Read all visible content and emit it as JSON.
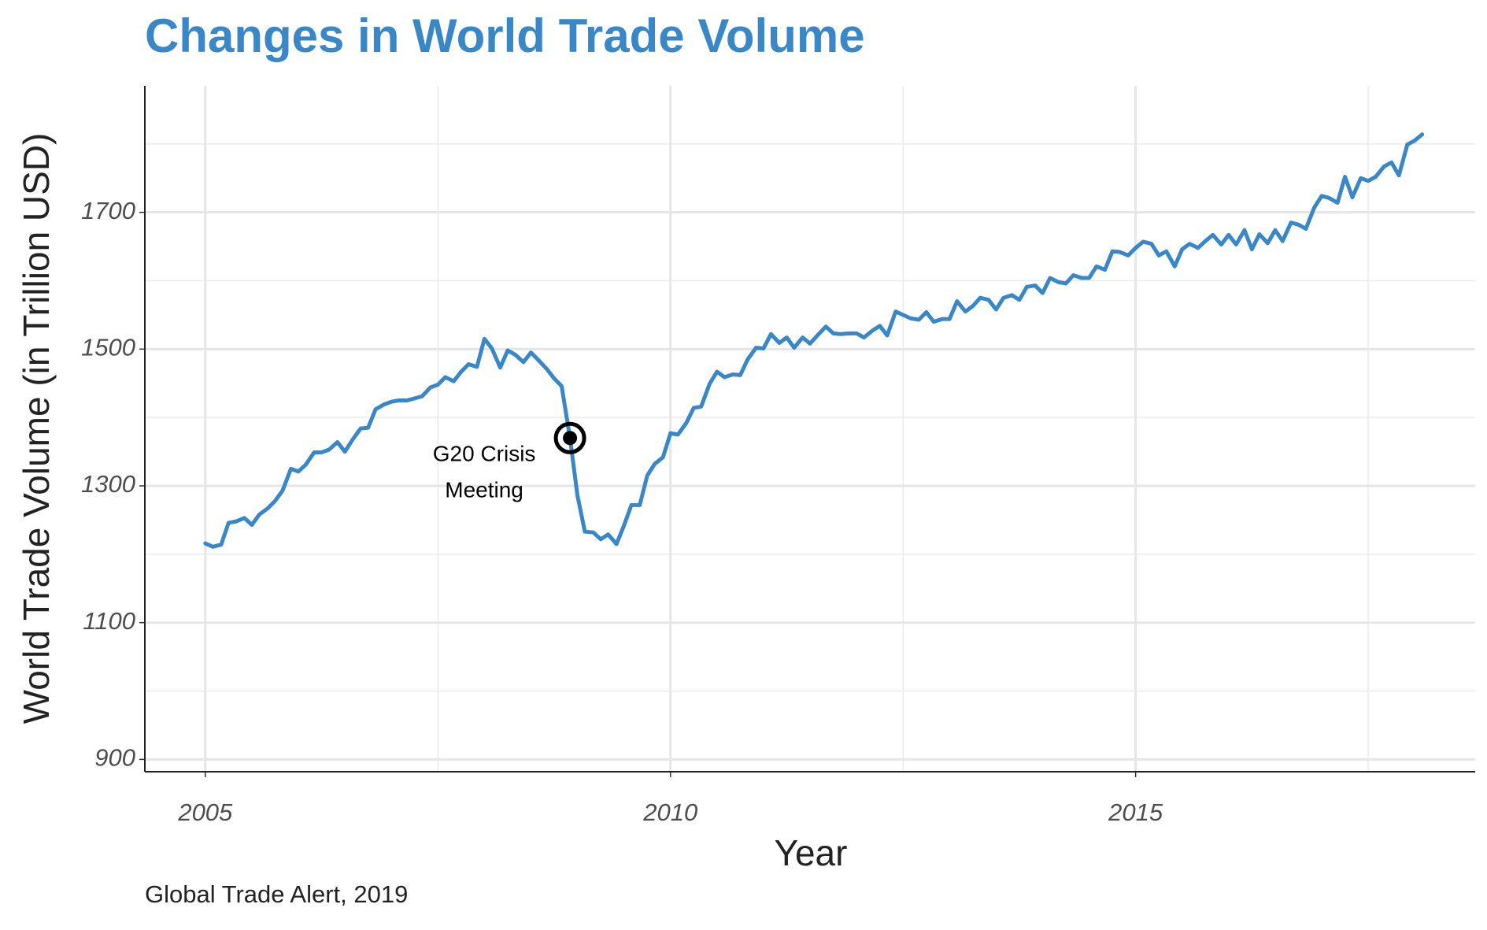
{
  "chart_data": {
    "type": "line",
    "title": "Changes in World Trade Volume",
    "x_label": "Year",
    "y_label": "World Trade Volume (in Trillion USD)",
    "caption": "Global Trade Alert, 2019",
    "x": [
      2005,
      2005.08,
      2005.17,
      2005.25,
      2005.33,
      2005.42,
      2005.5,
      2005.58,
      2005.67,
      2005.75,
      2005.83,
      2005.92,
      2006,
      2006.08,
      2006.17,
      2006.25,
      2006.33,
      2006.42,
      2006.5,
      2006.58,
      2006.67,
      2006.75,
      2006.83,
      2006.92,
      2007,
      2007.08,
      2007.17,
      2007.25,
      2007.33,
      2007.42,
      2007.5,
      2007.58,
      2007.67,
      2007.75,
      2007.83,
      2007.92,
      2008,
      2008.08,
      2008.17,
      2008.25,
      2008.33,
      2008.42,
      2008.5,
      2008.58,
      2008.67,
      2008.75,
      2008.83,
      2008.92,
      2009,
      2009.08,
      2009.17,
      2009.25,
      2009.33,
      2009.42,
      2009.5,
      2009.58,
      2009.67,
      2009.75,
      2009.83,
      2009.92,
      2010,
      2010.08,
      2010.17,
      2010.25,
      2010.33,
      2010.42,
      2010.5,
      2010.58,
      2010.67,
      2010.75,
      2010.83,
      2010.92,
      2011,
      2011.08,
      2011.17,
      2011.25,
      2011.33,
      2011.42,
      2011.5,
      2011.58,
      2011.67,
      2011.75,
      2011.83,
      2011.92,
      2012,
      2012.08,
      2012.17,
      2012.25,
      2012.33,
      2012.42,
      2012.5,
      2012.58,
      2012.67,
      2012.75,
      2012.83,
      2012.92,
      2013,
      2013.08,
      2013.17,
      2013.25,
      2013.33,
      2013.42,
      2013.5,
      2013.58,
      2013.67,
      2013.75,
      2013.83,
      2013.92,
      2014,
      2014.08,
      2014.17,
      2014.25,
      2014.33,
      2014.42,
      2014.5,
      2014.58,
      2014.67,
      2014.75,
      2014.83,
      2014.92,
      2015,
      2015.08,
      2015.17,
      2015.25,
      2015.33,
      2015.42,
      2015.5,
      2015.58,
      2015.67,
      2015.75,
      2015.83,
      2015.92,
      2016,
      2016.08,
      2016.17,
      2016.25,
      2016.33,
      2016.42,
      2016.5,
      2016.58,
      2016.67,
      2016.75,
      2016.83,
      2016.92,
      2017,
      2017.08,
      2017.17,
      2017.25,
      2017.33,
      2017.42,
      2017.5,
      2017.58,
      2017.67,
      2017.75,
      2017.83,
      2017.92,
      2018,
      2018.08
    ],
    "series": [
      {
        "color": "#3a87c8",
        "values": [
          1216,
          1211,
          1214,
          1246,
          1248,
          1253,
          1243,
          1258,
          1267,
          1278,
          1293,
          1325,
          1321,
          1331,
          1349,
          1349,
          1353,
          1364,
          1350,
          1367,
          1384,
          1385,
          1412,
          1419,
          1423,
          1425,
          1425,
          1428,
          1431,
          1444,
          1448,
          1459,
          1453,
          1467,
          1478,
          1474,
          1515,
          1501,
          1473,
          1498,
          1492,
          1481,
          1495,
          1484,
          1471,
          1457,
          1446,
          1370,
          1286,
          1233,
          1232,
          1222,
          1229,
          1215,
          1242,
          1272,
          1272,
          1315,
          1332,
          1342,
          1377,
          1375,
          1392,
          1414,
          1416,
          1449,
          1467,
          1459,
          1463,
          1462,
          1485,
          1502,
          1501,
          1522,
          1509,
          1517,
          1502,
          1517,
          1508,
          1520,
          1533,
          1523,
          1522,
          1523,
          1523,
          1517,
          1527,
          1534,
          1520,
          1555,
          1550,
          1545,
          1543,
          1554,
          1540,
          1544,
          1544,
          1570,
          1555,
          1563,
          1575,
          1572,
          1558,
          1575,
          1579,
          1572,
          1591,
          1593,
          1582,
          1604,
          1598,
          1596,
          1608,
          1604,
          1604,
          1621,
          1616,
          1643,
          1642,
          1637,
          1648,
          1657,
          1654,
          1637,
          1643,
          1621,
          1646,
          1654,
          1648,
          1658,
          1667,
          1653,
          1667,
          1653,
          1674,
          1646,
          1668,
          1655,
          1674,
          1658,
          1685,
          1682,
          1676,
          1707,
          1724,
          1721,
          1714,
          1752,
          1722,
          1750,
          1746,
          1752,
          1767,
          1773,
          1754,
          1799,
          1805,
          1814
        ]
      }
    ],
    "annotation": {
      "x": 2008.92,
      "y": 1370,
      "text": [
        "G20 Crisis",
        "Meeting"
      ]
    },
    "xlim": [
      2004.35,
      2018.65
    ],
    "ylim": [
      882,
      1885
    ],
    "xticks": [
      2005,
      2010,
      2015
    ],
    "yticks": [
      900,
      1100,
      1300,
      1500,
      1700
    ],
    "x_minor_grid": [
      2007.5,
      2012.5,
      2017.5
    ],
    "y_minor_grid": [
      1000,
      1200,
      1400,
      1600,
      1800
    ],
    "grid": true
  }
}
